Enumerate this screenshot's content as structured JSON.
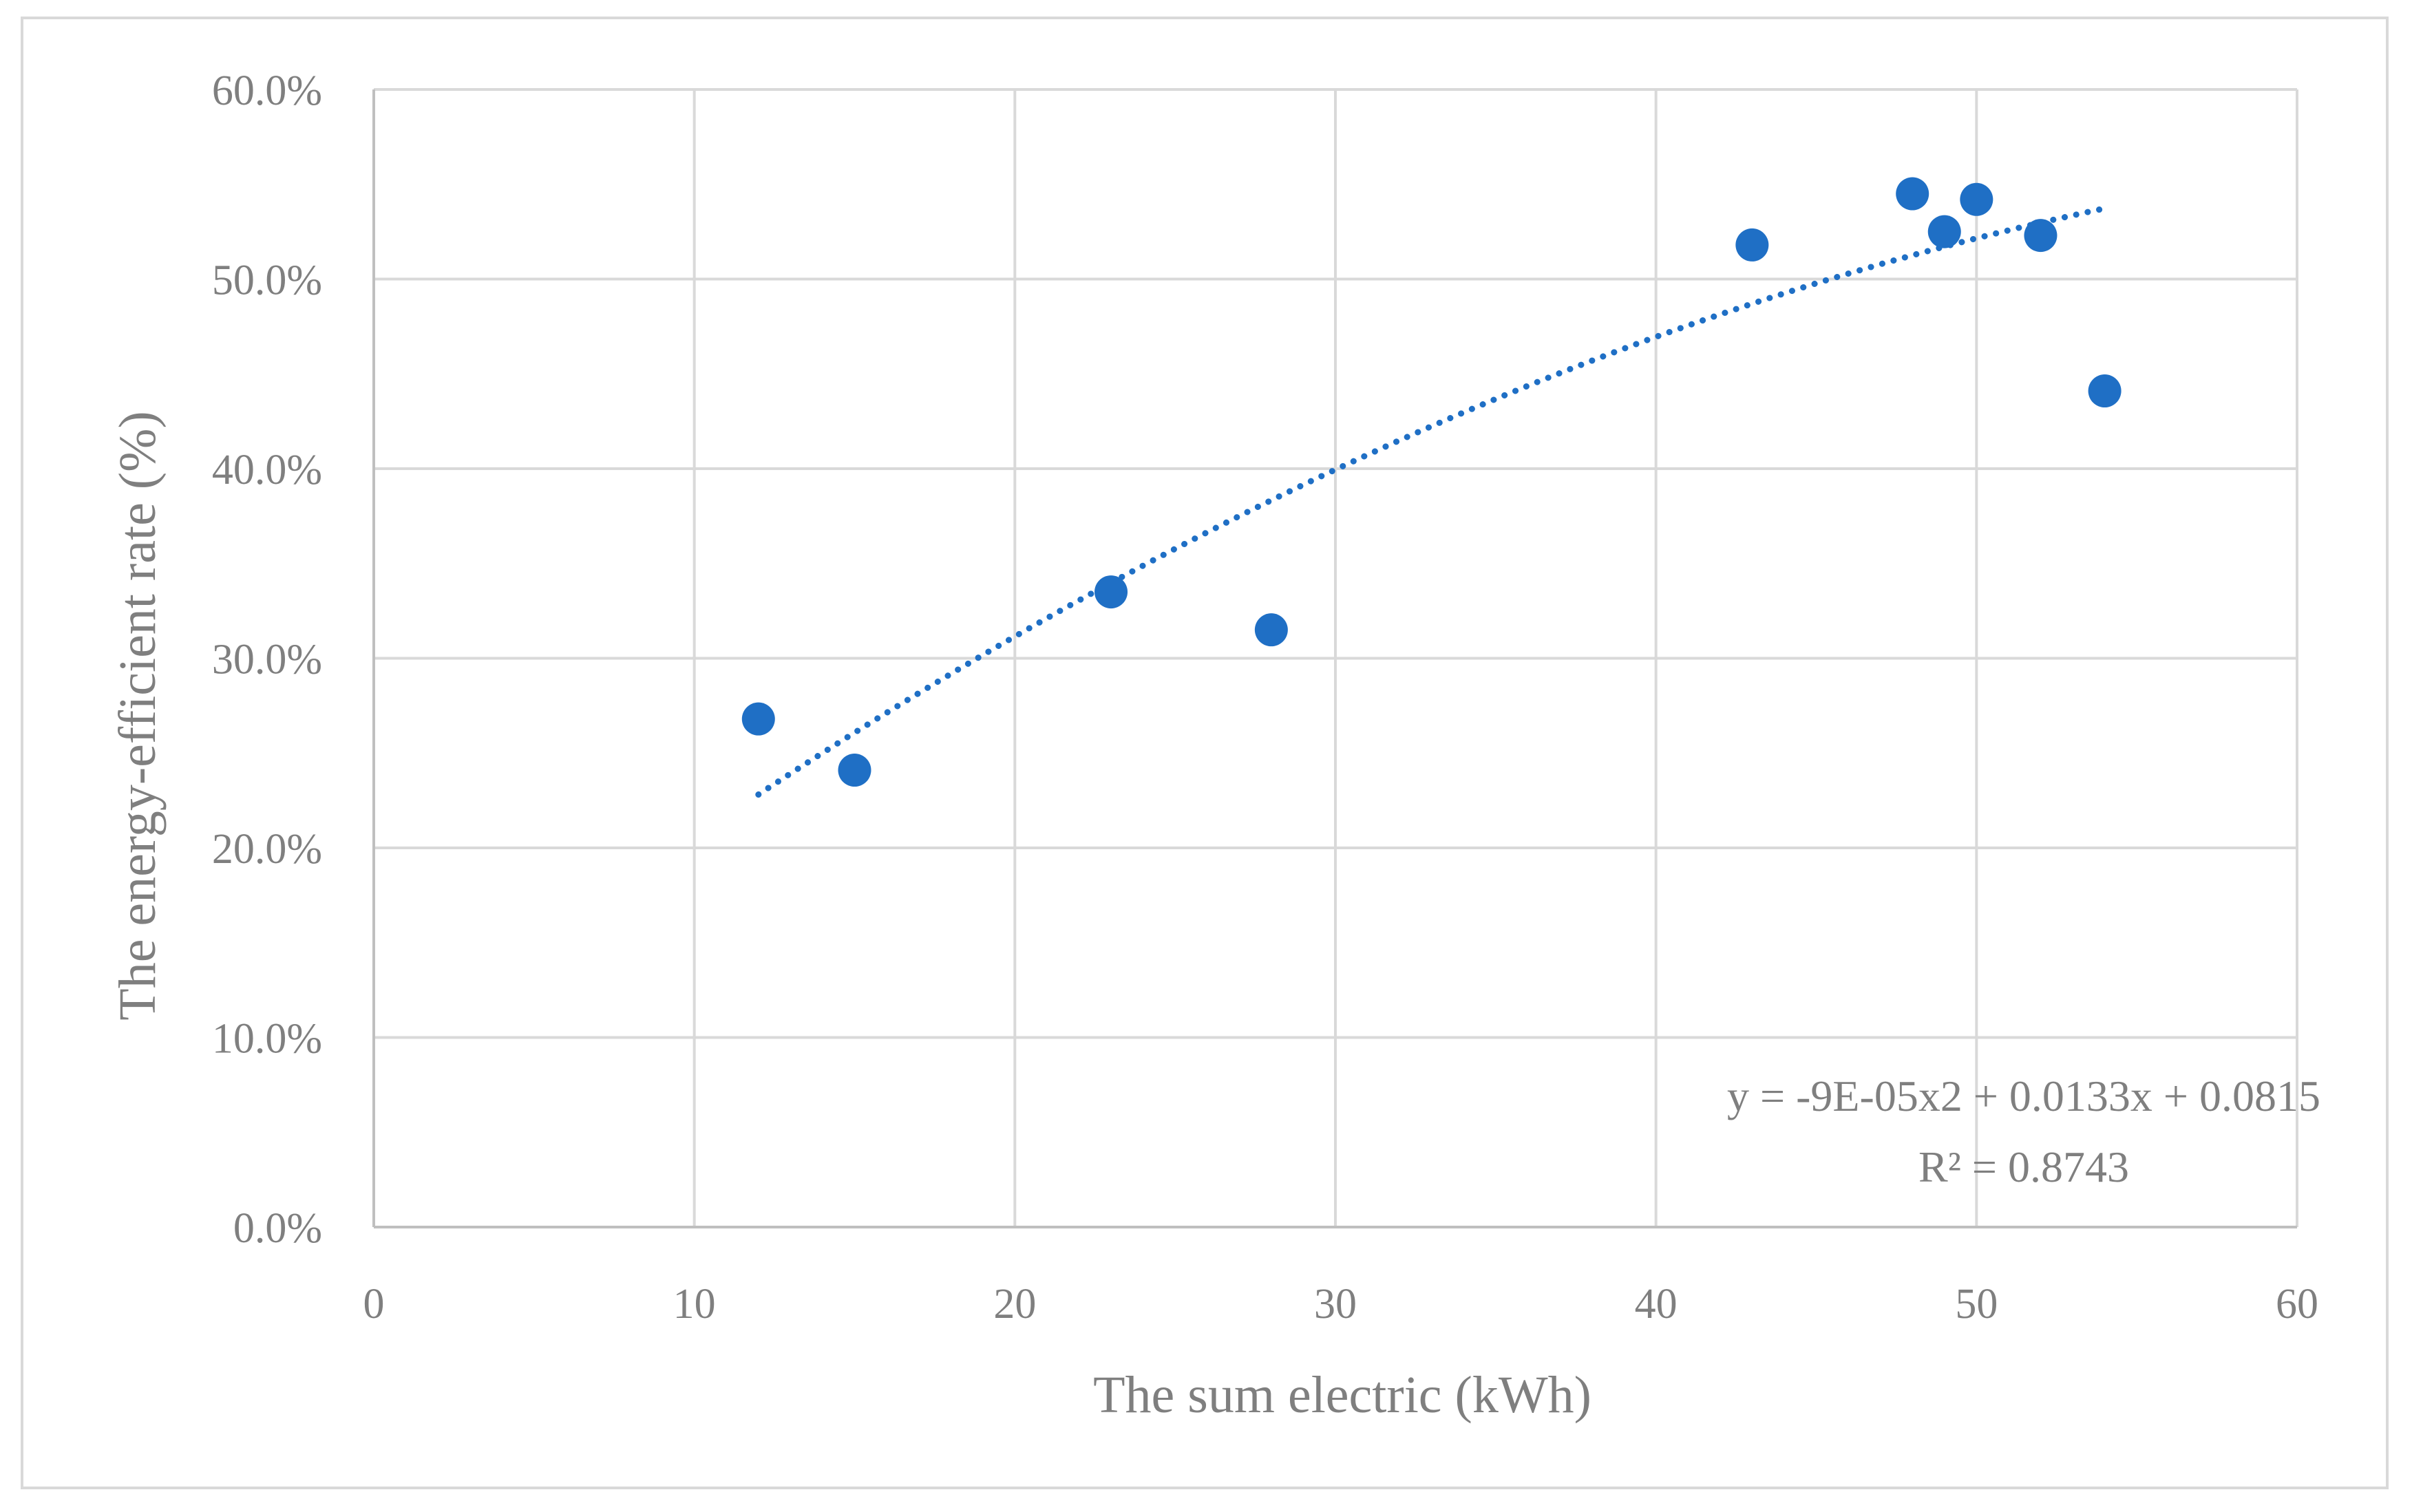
{
  "chart_data": {
    "type": "scatter",
    "title": "",
    "xlabel": "The sum electric (kWh)",
    "ylabel": "The energy-efficient rate (%)",
    "xlim": [
      0,
      60
    ],
    "ylim": [
      0,
      0.6
    ],
    "x_ticks": [
      0,
      10,
      20,
      30,
      40,
      50,
      60
    ],
    "x_tick_labels": [
      "0",
      "10",
      "20",
      "30",
      "40",
      "50",
      "60"
    ],
    "y_ticks": [
      0,
      0.1,
      0.2,
      0.3,
      0.4,
      0.5,
      0.6
    ],
    "y_tick_labels": [
      "0.0%",
      "10.0%",
      "20.0%",
      "30.0%",
      "40.0%",
      "50.0%",
      "60.0%"
    ],
    "grid": true,
    "legend": "none",
    "series": [
      {
        "name": "Energy-efficient rate",
        "color": "#1f6fc5",
        "x": [
          12,
          15,
          23,
          28,
          43,
          48,
          49,
          50,
          52,
          54
        ],
        "y": [
          0.268,
          0.241,
          0.335,
          0.315,
          0.518,
          0.545,
          0.525,
          0.542,
          0.523,
          0.441
        ]
      }
    ],
    "trendline": {
      "type": "polynomial",
      "order": 2,
      "coefficients": [
        -9e-05,
        0.0133,
        0.0815
      ],
      "x_range": [
        12,
        54
      ],
      "style": "dotted",
      "color": "#1f6fc5"
    },
    "annotations": {
      "equation": "y = -9E-05x2 + 0.0133x + 0.0815",
      "r_squared": "R² = 0.8743"
    }
  }
}
